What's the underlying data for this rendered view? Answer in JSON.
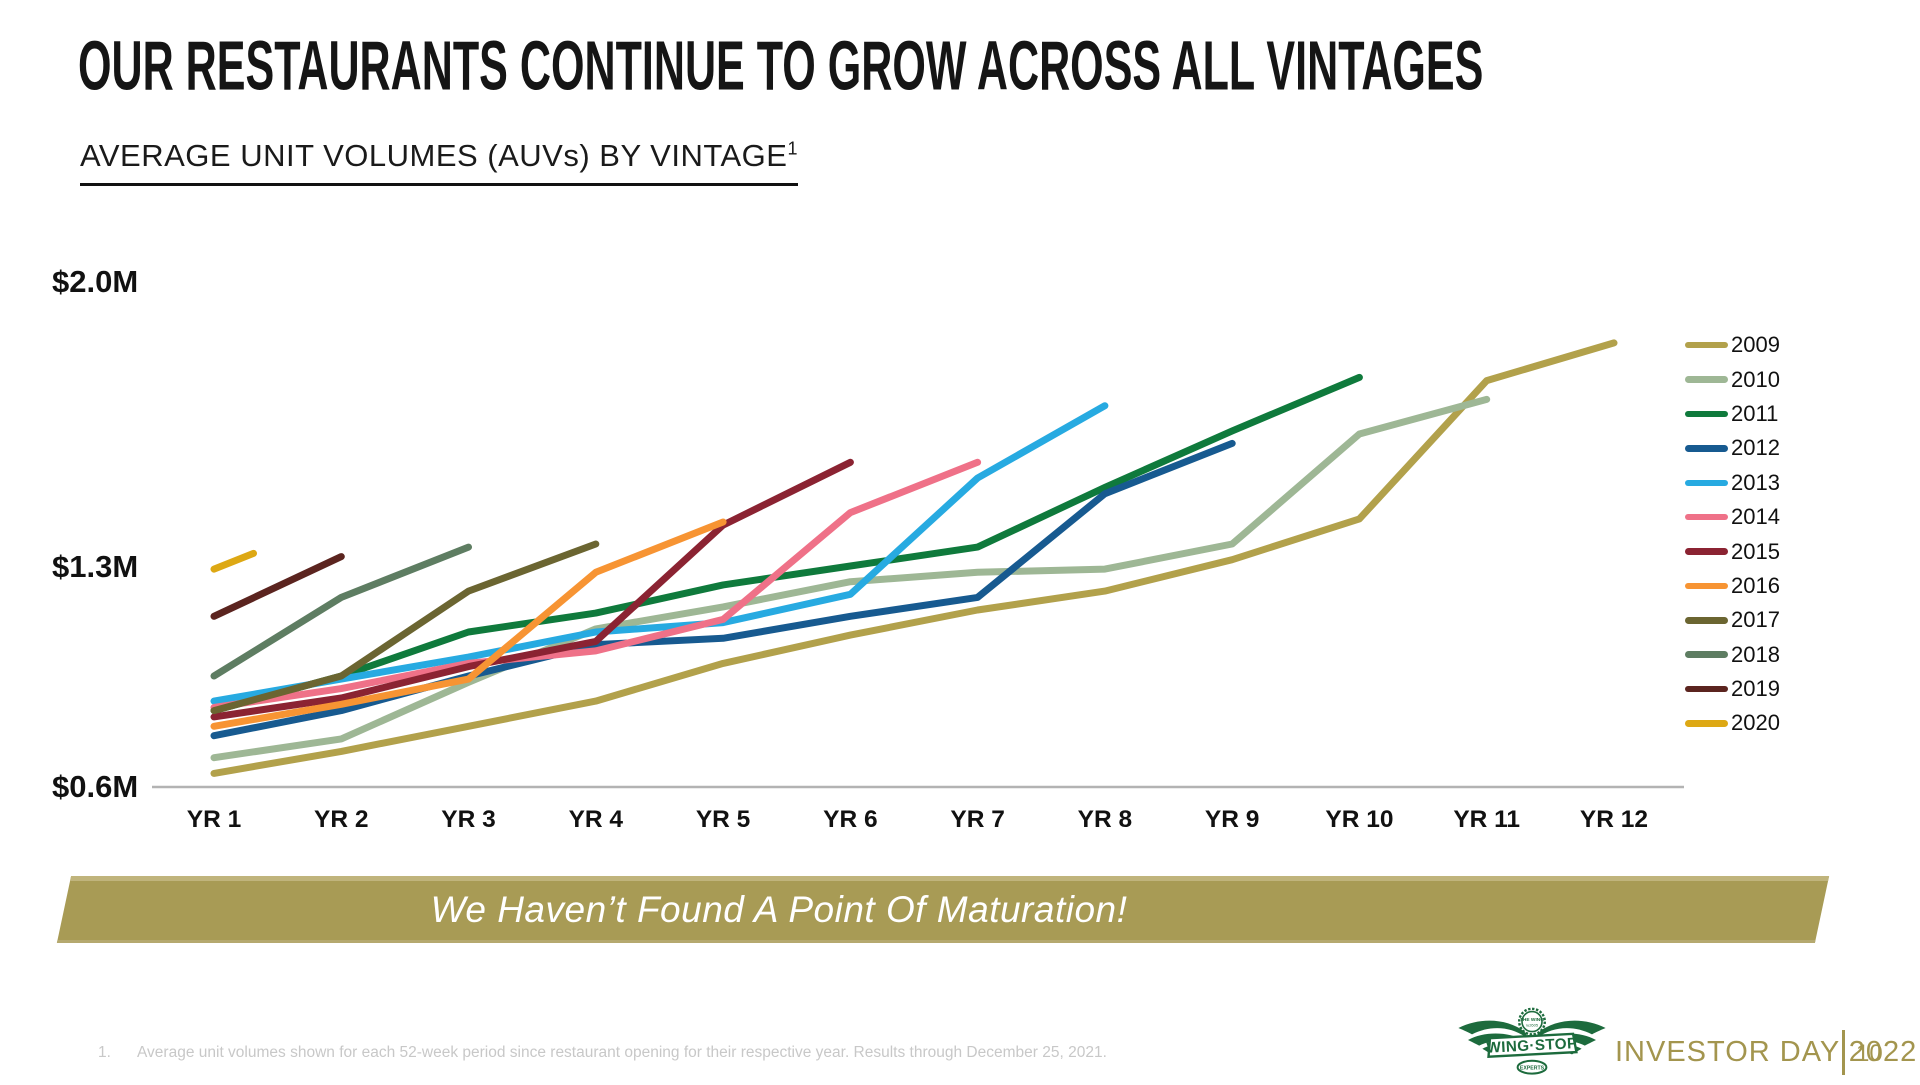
{
  "slide": {
    "title": "OUR RESTAURANTS CONTINUE TO GROW ACROSS ALL VINTAGES",
    "subtitle": "AVERAGE UNIT VOLUMES (AUVs) BY VINTAGE",
    "subtitle_superscript": "1",
    "banner_text": "We Haven’t Found A Point Of Maturation!",
    "footnote_number": "1.",
    "footnote_text": "Average unit volumes shown for each 52-week period since restaurant opening for their respective year. Results through December 25, 2021.",
    "footer": {
      "brand": "WING·STOP",
      "badge_top": "THE WING",
      "badge_bottom": "EXPERTS",
      "event": "INVESTOR DAY 2022",
      "page": "10"
    }
  },
  "colors": {
    "banner_gold": "#a89b55",
    "footer_gold": "#a3954e",
    "logo_green": "#1d6b3d",
    "axis_line": "#b3b3b3",
    "footnote_gray": "#c8c8c8",
    "text_black": "#151515"
  },
  "chart_data": {
    "type": "line",
    "title": "AVERAGE UNIT VOLUMES (AUVs) BY VINTAGE",
    "x_categories": [
      "YR 1",
      "YR 2",
      "YR 3",
      "YR 4",
      "YR 5",
      "YR 6",
      "YR 7",
      "YR 8",
      "YR 9",
      "YR 10",
      "YR 11",
      "YR 12"
    ],
    "y_axis_labels": [
      "$2.0M",
      "$1.3M",
      "$0.6M"
    ],
    "y_unit": "$M",
    "ylim": [
      0.6,
      2.0
    ],
    "grid": false,
    "legend_position": "right",
    "series": [
      {
        "name": "2009",
        "color": "#b2a14b",
        "values": [
          0.64,
          0.71,
          0.79,
          0.87,
          0.99,
          1.08,
          1.16,
          1.22,
          1.32,
          1.45,
          1.89,
          2.01
        ]
      },
      {
        "name": "2010",
        "color": "#9eb795",
        "values": [
          0.69,
          0.75,
          0.93,
          1.1,
          1.17,
          1.25,
          1.28,
          1.29,
          1.37,
          1.72,
          1.83
        ]
      },
      {
        "name": "2011",
        "color": "#0f7a3c",
        "values": [
          0.84,
          0.95,
          1.09,
          1.15,
          1.24,
          1.3,
          1.36,
          1.55,
          1.73,
          1.9
        ]
      },
      {
        "name": "2012",
        "color": "#175a90",
        "values": [
          0.76,
          0.84,
          0.95,
          1.05,
          1.07,
          1.14,
          1.2,
          1.53,
          1.69
        ]
      },
      {
        "name": "2013",
        "color": "#27aae1",
        "values": [
          0.87,
          0.94,
          1.01,
          1.09,
          1.12,
          1.21,
          1.58,
          1.81
        ]
      },
      {
        "name": "2014",
        "color": "#ef7188",
        "values": [
          0.85,
          0.91,
          0.99,
          1.03,
          1.13,
          1.47,
          1.63
        ]
      },
      {
        "name": "2015",
        "color": "#8b2332",
        "values": [
          0.82,
          0.88,
          0.98,
          1.06,
          1.43,
          1.63
        ]
      },
      {
        "name": "2016",
        "color": "#f79433",
        "values": [
          0.79,
          0.86,
          0.94,
          1.28,
          1.44
        ]
      },
      {
        "name": "2017",
        "color": "#6b6531",
        "values": [
          0.84,
          0.95,
          1.22,
          1.37
        ]
      },
      {
        "name": "2018",
        "color": "#5e7d62",
        "values": [
          0.95,
          1.2,
          1.36
        ]
      },
      {
        "name": "2019",
        "color": "#5b241f",
        "values": [
          1.14,
          1.33
        ]
      },
      {
        "name": "2020",
        "color": "#dda814",
        "values": [
          1.29,
          1.34
        ],
        "x_span": [
          1,
          1.31
        ]
      }
    ]
  }
}
